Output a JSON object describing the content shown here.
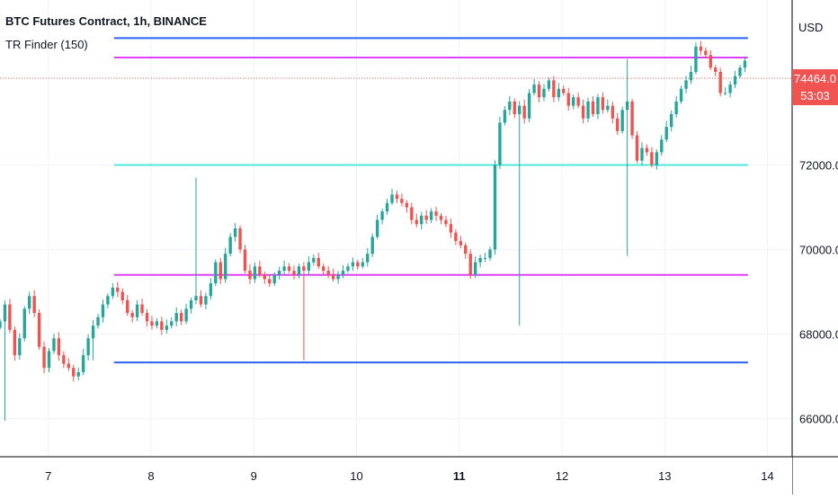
{
  "header": {
    "title": "BTC Futures Contract, 1h, BINANCE",
    "indicator": "TR Finder (150)"
  },
  "price_scale": {
    "currency": "USD",
    "last_price": "74464.0",
    "countdown": "53:03",
    "last_price_color": "#f05350"
  },
  "colors": {
    "up": "#26a69a",
    "down": "#ef5350",
    "blue_line": "#2962ff",
    "magenta_line": "#e040fb",
    "cyan_line": "#4de8d6",
    "grid": "#f0f3fa"
  },
  "chart_data": {
    "type": "candlestick",
    "title": "BTC Futures Contract, 1h, BINANCE",
    "x_ticks": [
      "7",
      "8",
      "9",
      "10",
      "11",
      "12",
      "13",
      "14"
    ],
    "x_tick_values": [
      7,
      8,
      9,
      10,
      11,
      12,
      13,
      14
    ],
    "bold_ticks": [
      "11"
    ],
    "y_ticks": [
      "66000.0",
      "68000.0",
      "70000.0",
      "72000.0"
    ],
    "y_tick_values": [
      66000,
      68000,
      70000,
      72000
    ],
    "ylim": [
      65100,
      75900
    ],
    "xlim": [
      6.53,
      14.24
    ],
    "last_price": 74464.0,
    "grid": true,
    "horizontal_levels": [
      {
        "name": "range-top-blue",
        "value": 75000,
        "x_from": 7.64,
        "x_to": 13.81,
        "color": "#2962ff"
      },
      {
        "name": "range-top-magenta",
        "value": 74540,
        "x_from": 7.64,
        "x_to": 13.81,
        "color": "#e040fb"
      },
      {
        "name": "range-mid-cyan",
        "value": 72000,
        "x_from": 7.64,
        "x_to": 13.81,
        "color": "#4de8d6"
      },
      {
        "name": "range-bottom-magenta",
        "value": 69400,
        "x_from": 7.64,
        "x_to": 13.81,
        "color": "#e040fb"
      },
      {
        "name": "range-bottom-blue",
        "value": 67330,
        "x_from": 7.64,
        "x_to": 13.81,
        "color": "#2962ff"
      }
    ],
    "series_close": [
      68300,
      68700,
      68100,
      67500,
      67900,
      68600,
      68900,
      68500,
      67700,
      67200,
      67600,
      67900,
      67500,
      67300,
      67200,
      67000,
      67100,
      67500,
      67900,
      68200,
      68400,
      68700,
      68900,
      69100,
      69000,
      68800,
      68500,
      68400,
      68700,
      68500,
      68300,
      68200,
      68300,
      68100,
      68200,
      68300,
      68500,
      68300,
      68600,
      68800,
      68900,
      68700,
      68900,
      69200,
      69700,
      69300,
      69900,
      70300,
      70500,
      70000,
      69500,
      69300,
      69600,
      69400,
      69300,
      69200,
      69400,
      69500,
      69600,
      69500,
      69400,
      69600,
      69500,
      69700,
      69800,
      69600,
      69500,
      69400,
      69300,
      69400,
      69500,
      69600,
      69700,
      69600,
      69700,
      69900,
      70300,
      70700,
      70900,
      71100,
      71300,
      71200,
      71100,
      71000,
      70700,
      70600,
      70800,
      70700,
      70900,
      70800,
      70700,
      70600,
      70400,
      70200,
      70100,
      69900,
      69400,
      69700,
      69800,
      69800,
      70000,
      72000,
      73000,
      73300,
      73500,
      73200,
      73400,
      73100,
      73700,
      73900,
      73600,
      73800,
      74000,
      73600,
      73800,
      73700,
      73400,
      73600,
      73400,
      73100,
      73500,
      73200,
      73600,
      73300,
      73400,
      73100,
      72800,
      73300,
      73500,
      72700,
      72100,
      72400,
      72300,
      72000,
      72300,
      72600,
      72900,
      73200,
      73500,
      73800,
      74000,
      74200,
      74800,
      74700,
      74600,
      74300,
      74200,
      73700,
      73700,
      73900,
      74100,
      74300,
      74464
    ]
  }
}
